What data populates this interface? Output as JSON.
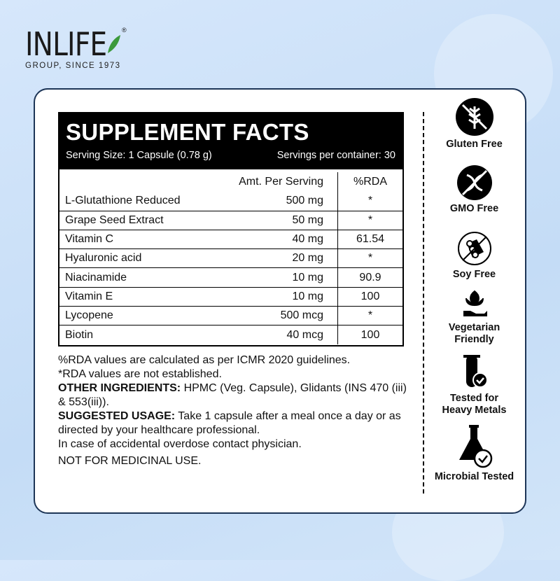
{
  "brand": {
    "name": "INLIFE",
    "registered": "®",
    "tagline": "GROUP, SINCE 1973"
  },
  "facts": {
    "title": "SUPPLEMENT FACTS",
    "serving_size": "Serving Size: 1 Capsule (0.78 g)",
    "servings_per_container": "Servings per container: 30",
    "col_amount": "Amt. Per Serving",
    "col_rda": "%RDA",
    "rows": [
      {
        "name": "L-Glutathione Reduced",
        "amount": "500 mg",
        "rda": "*"
      },
      {
        "name": "Grape Seed Extract",
        "amount": "50 mg",
        "rda": "*"
      },
      {
        "name": "Vitamin C",
        "amount": "40 mg",
        "rda": "61.54"
      },
      {
        "name": "Hyaluronic acid",
        "amount": "20 mg",
        "rda": "*"
      },
      {
        "name": "Niacinamide",
        "amount": "10 mg",
        "rda": "90.9"
      },
      {
        "name": "Vitamin E",
        "amount": "10 mg",
        "rda": "100"
      },
      {
        "name": "Lycopene",
        "amount": "500 mcg",
        "rda": "*"
      },
      {
        "name": "Biotin",
        "amount": "40 mcg",
        "rda": "100"
      }
    ]
  },
  "notes": {
    "rda_note": "%RDA values are calculated as per ICMR 2020 guidelines.",
    "rda_star": "*RDA values are not established.",
    "other_label": "OTHER INGREDIENTS:",
    "other_text": " HPMC (Veg. Capsule), Glidants (INS 470 (iii) & 553(iii)).",
    "usage_label": "SUGGESTED USAGE:",
    "usage_text": " Take 1 capsule after a meal once a day or as directed by your healthcare professional.",
    "overdose": "In case of accidental overdose contact physician.",
    "not_medicinal": "NOT FOR MEDICINAL USE."
  },
  "badges": [
    {
      "label": "Gluten Free",
      "icon": "gluten-free-icon"
    },
    {
      "label": "GMO Free",
      "icon": "gmo-free-icon"
    },
    {
      "label": "Soy Free",
      "icon": "soy-free-icon"
    },
    {
      "label": "Vegetarian Friendly",
      "icon": "vegetarian-icon"
    },
    {
      "label": "Tested for Heavy Metals",
      "icon": "heavy-metals-icon"
    },
    {
      "label": "Microbial Tested",
      "icon": "microbial-icon"
    }
  ],
  "colors": {
    "background": "#c4dcf6",
    "card_border": "#1d3557",
    "leaf": "#3c9a3c"
  }
}
